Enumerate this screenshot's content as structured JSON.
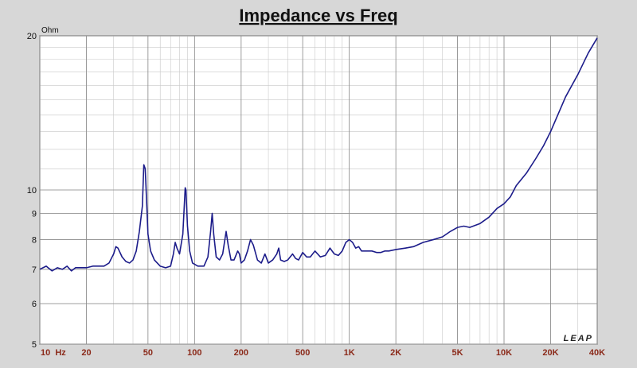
{
  "chart_data": {
    "type": "line",
    "title": "Impedance vs Freq",
    "ylabel": "Ohm",
    "logo": "LEAP",
    "xscale": "log",
    "yscale": "log",
    "grid": true,
    "xlim": [
      10,
      40000
    ],
    "ylim": [
      5,
      20
    ],
    "xticks": [
      {
        "value": 10,
        "label": "10  Hz"
      },
      20,
      50,
      100,
      200,
      500,
      {
        "value": 1000,
        "label": "1K"
      },
      {
        "value": 2000,
        "label": "2K"
      },
      {
        "value": 5000,
        "label": "5K"
      },
      {
        "value": 10000,
        "label": "10K"
      },
      {
        "value": 20000,
        "label": "20K"
      },
      {
        "value": 40000,
        "label": "40K"
      }
    ],
    "yticks": [
      5,
      6,
      7,
      8,
      9,
      10,
      20
    ],
    "x": [
      10,
      11,
      12,
      13,
      14,
      15,
      16,
      17,
      18,
      20,
      22,
      24,
      26,
      28,
      30,
      31,
      32,
      34,
      36,
      38,
      40,
      42,
      44,
      46,
      47,
      48,
      49,
      50,
      52,
      55,
      60,
      65,
      70,
      73,
      75,
      77,
      80,
      84,
      87,
      88,
      90,
      93,
      97,
      105,
      115,
      122,
      127,
      130,
      133,
      138,
      145,
      152,
      160,
      165,
      172,
      180,
      190,
      195,
      200,
      210,
      220,
      230,
      240,
      255,
      270,
      285,
      300,
      320,
      340,
      350,
      360,
      380,
      400,
      430,
      450,
      470,
      500,
      530,
      560,
      600,
      650,
      700,
      750,
      800,
      850,
      900,
      950,
      1000,
      1050,
      1100,
      1150,
      1200,
      1300,
      1400,
      1500,
      1600,
      1700,
      1800,
      2000,
      2300,
      2600,
      3000,
      3500,
      4000,
      4500,
      5000,
      5500,
      6000,
      7000,
      8000,
      9000,
      10000,
      11000,
      12000,
      14000,
      16000,
      18000,
      20000,
      25000,
      30000,
      35000,
      40000
    ],
    "series": [
      {
        "name": "Impedance",
        "color": "#1c1c8a",
        "values": [
          7.0,
          7.1,
          6.95,
          7.05,
          7.0,
          7.1,
          6.95,
          7.05,
          7.05,
          7.05,
          7.1,
          7.1,
          7.1,
          7.2,
          7.5,
          7.75,
          7.7,
          7.4,
          7.25,
          7.2,
          7.3,
          7.6,
          8.3,
          9.3,
          11.2,
          11.0,
          9.5,
          8.2,
          7.6,
          7.3,
          7.1,
          7.05,
          7.1,
          7.5,
          7.9,
          7.7,
          7.5,
          8.2,
          10.1,
          10.0,
          8.5,
          7.6,
          7.2,
          7.1,
          7.1,
          7.4,
          8.3,
          9.0,
          8.2,
          7.4,
          7.3,
          7.5,
          8.3,
          7.8,
          7.3,
          7.3,
          7.6,
          7.5,
          7.2,
          7.3,
          7.6,
          8.0,
          7.8,
          7.3,
          7.2,
          7.5,
          7.2,
          7.3,
          7.5,
          7.7,
          7.3,
          7.25,
          7.3,
          7.5,
          7.35,
          7.3,
          7.55,
          7.4,
          7.4,
          7.6,
          7.4,
          7.45,
          7.7,
          7.5,
          7.45,
          7.6,
          7.9,
          8.0,
          7.9,
          7.7,
          7.75,
          7.6,
          7.6,
          7.6,
          7.55,
          7.55,
          7.6,
          7.6,
          7.65,
          7.7,
          7.75,
          7.9,
          8.0,
          8.1,
          8.3,
          8.45,
          8.5,
          8.45,
          8.6,
          8.85,
          9.2,
          9.4,
          9.7,
          10.2,
          10.8,
          11.5,
          12.2,
          13.0,
          15.2,
          16.8,
          18.5,
          19.8
        ]
      }
    ]
  }
}
